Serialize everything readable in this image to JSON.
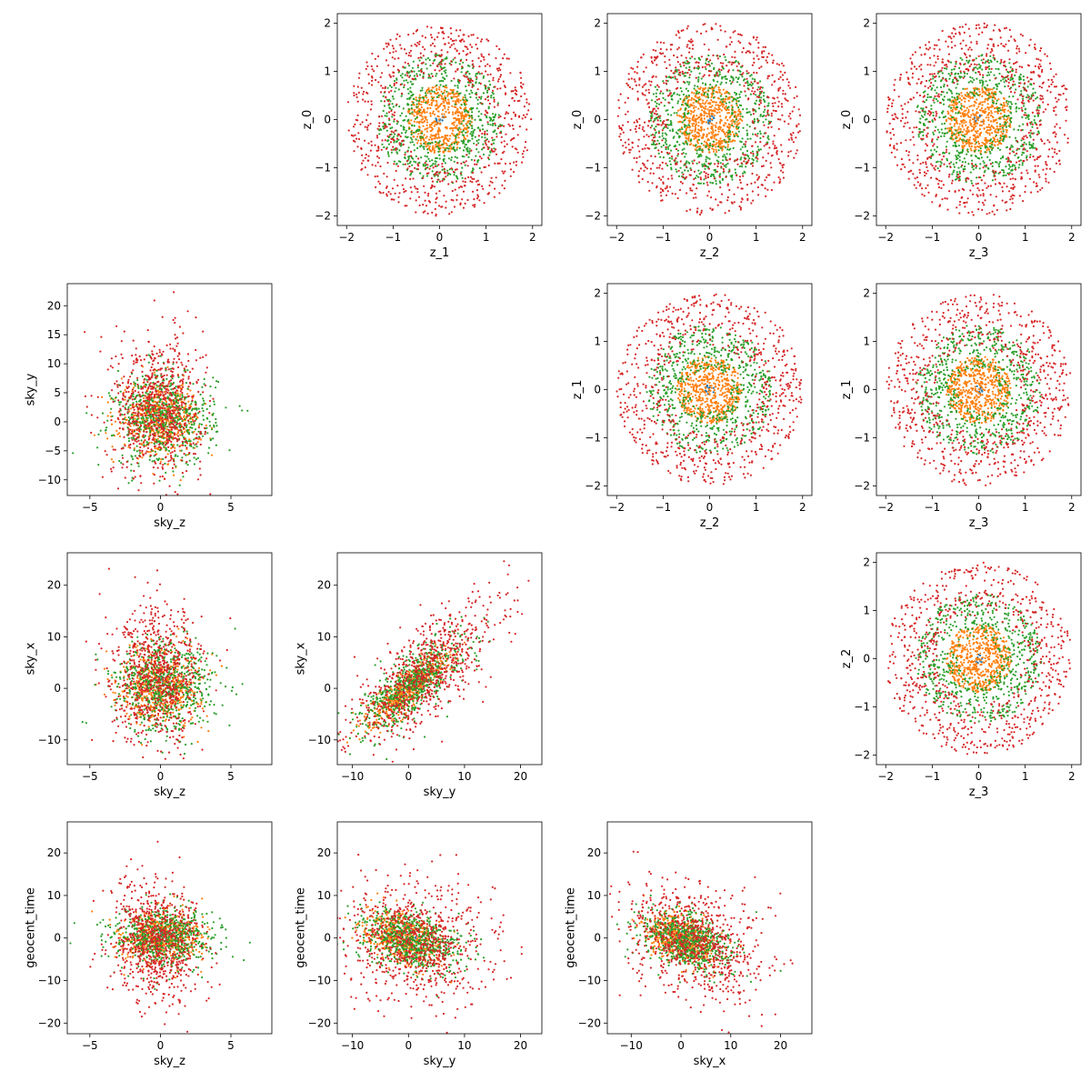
{
  "figure": {
    "layout": "4x4 scatter grid, some cells empty"
  },
  "colors": {
    "series": [
      "#1f77b4",
      "#ff7f0e",
      "#2ca02c",
      "#d62728"
    ]
  },
  "chart_data": [
    {
      "type": "scatter",
      "row": 0,
      "col": 1,
      "xlabel": "z_1",
      "ylabel": "z_0",
      "xlim": [
        -2.2,
        2.2
      ],
      "ylim": [
        -2.2,
        2.2
      ],
      "xticks": [
        -2,
        -1,
        0,
        1,
        2
      ],
      "yticks": [
        -2,
        -1,
        0,
        1,
        2
      ],
      "series": [
        {
          "color": "#1f77b4",
          "dist": "disk",
          "cx": 0,
          "cy": 0,
          "r": 0.1,
          "n": 12
        },
        {
          "color": "#ff7f0e",
          "dist": "disk",
          "cx": 0,
          "cy": 0,
          "r": 0.7,
          "n": 550
        },
        {
          "color": "#2ca02c",
          "dist": "ring",
          "cx": 0,
          "cy": 0,
          "r_in": 0.45,
          "r_out": 1.35,
          "n": 650
        },
        {
          "color": "#d62728",
          "dist": "ring",
          "cx": 0,
          "cy": 0,
          "r_in": 0.9,
          "r_out": 2.0,
          "n": 750
        }
      ]
    },
    {
      "type": "scatter",
      "row": 0,
      "col": 2,
      "xlabel": "z_2",
      "ylabel": "z_0",
      "xlim": [
        -2.2,
        2.2
      ],
      "ylim": [
        -2.2,
        2.2
      ],
      "xticks": [
        -2,
        -1,
        0,
        1,
        2
      ],
      "yticks": [
        -2,
        -1,
        0,
        1,
        2
      ],
      "series": [
        {
          "color": "#1f77b4",
          "dist": "disk",
          "cx": 0,
          "cy": 0,
          "r": 0.1,
          "n": 12
        },
        {
          "color": "#ff7f0e",
          "dist": "disk",
          "cx": 0,
          "cy": 0,
          "r": 0.7,
          "n": 550
        },
        {
          "color": "#2ca02c",
          "dist": "ring",
          "cx": 0,
          "cy": 0,
          "r_in": 0.45,
          "r_out": 1.35,
          "n": 650
        },
        {
          "color": "#d62728",
          "dist": "ring",
          "cx": 0,
          "cy": 0,
          "r_in": 0.9,
          "r_out": 2.0,
          "n": 750
        }
      ]
    },
    {
      "type": "scatter",
      "row": 0,
      "col": 3,
      "xlabel": "z_3",
      "ylabel": "z_0",
      "xlim": [
        -2.2,
        2.2
      ],
      "ylim": [
        -2.2,
        2.2
      ],
      "xticks": [
        -2,
        -1,
        0,
        1,
        2
      ],
      "yticks": [
        -2,
        -1,
        0,
        1,
        2
      ],
      "series": [
        {
          "color": "#1f77b4",
          "dist": "disk",
          "cx": 0,
          "cy": 0,
          "r": 0.1,
          "n": 12
        },
        {
          "color": "#ff7f0e",
          "dist": "disk",
          "cx": 0,
          "cy": 0,
          "r": 0.7,
          "n": 550
        },
        {
          "color": "#2ca02c",
          "dist": "ring",
          "cx": 0,
          "cy": 0,
          "r_in": 0.45,
          "r_out": 1.35,
          "n": 650
        },
        {
          "color": "#d62728",
          "dist": "ring",
          "cx": 0,
          "cy": 0,
          "r_in": 0.9,
          "r_out": 2.0,
          "n": 750
        }
      ]
    },
    {
      "type": "scatter",
      "row": 1,
      "col": 0,
      "xlabel": "sky_z",
      "ylabel": "sky_y",
      "xlim": [
        -6.6,
        7.9
      ],
      "ylim": [
        -12.7,
        23.8
      ],
      "xticks": [
        -5,
        0,
        5
      ],
      "yticks": [
        -10,
        -5,
        0,
        5,
        10,
        15,
        20
      ],
      "series": [
        {
          "color": "#1f77b4",
          "dist": "gauss",
          "mx": 0,
          "my": 0.5,
          "sx": 0.3,
          "sy": 1,
          "n": 12
        },
        {
          "color": "#ff7f0e",
          "dist": "gauss",
          "mx": 0,
          "my": 0.5,
          "sx": 1.4,
          "sy": 3,
          "n": 550
        },
        {
          "color": "#2ca02c",
          "dist": "gauss",
          "mx": 0.3,
          "my": 0.5,
          "sx": 1.8,
          "sy": 4,
          "n": 650
        },
        {
          "color": "#d62728",
          "dist": "gauss",
          "mx": -0.2,
          "my": 2.5,
          "sx": 1.6,
          "sy": 6,
          "n": 750
        }
      ]
    },
    {
      "type": "scatter",
      "row": 1,
      "col": 2,
      "xlabel": "z_2",
      "ylabel": "z_1",
      "xlim": [
        -2.2,
        2.2
      ],
      "ylim": [
        -2.2,
        2.2
      ],
      "xticks": [
        -2,
        -1,
        0,
        1,
        2
      ],
      "yticks": [
        -2,
        -1,
        0,
        1,
        2
      ],
      "series": [
        {
          "color": "#1f77b4",
          "dist": "disk",
          "cx": 0,
          "cy": 0,
          "r": 0.1,
          "n": 12
        },
        {
          "color": "#ff7f0e",
          "dist": "disk",
          "cx": 0,
          "cy": 0,
          "r": 0.7,
          "n": 550
        },
        {
          "color": "#2ca02c",
          "dist": "ring",
          "cx": 0,
          "cy": 0,
          "r_in": 0.45,
          "r_out": 1.35,
          "n": 650
        },
        {
          "color": "#d62728",
          "dist": "ring",
          "cx": 0,
          "cy": 0,
          "r_in": 0.9,
          "r_out": 2.0,
          "n": 750
        }
      ]
    },
    {
      "type": "scatter",
      "row": 1,
      "col": 3,
      "xlabel": "z_3",
      "ylabel": "z_1",
      "xlim": [
        -2.2,
        2.2
      ],
      "ylim": [
        -2.2,
        2.2
      ],
      "xticks": [
        -2,
        -1,
        0,
        1,
        2
      ],
      "yticks": [
        -2,
        -1,
        0,
        1,
        2
      ],
      "series": [
        {
          "color": "#1f77b4",
          "dist": "disk",
          "cx": 0,
          "cy": 0,
          "r": 0.1,
          "n": 12
        },
        {
          "color": "#ff7f0e",
          "dist": "disk",
          "cx": 0,
          "cy": 0,
          "r": 0.7,
          "n": 550
        },
        {
          "color": "#2ca02c",
          "dist": "ring",
          "cx": 0,
          "cy": 0,
          "r_in": 0.45,
          "r_out": 1.35,
          "n": 650
        },
        {
          "color": "#d62728",
          "dist": "ring",
          "cx": 0,
          "cy": 0,
          "r_in": 0.9,
          "r_out": 2.0,
          "n": 750
        }
      ]
    },
    {
      "type": "scatter",
      "row": 2,
      "col": 0,
      "xlabel": "sky_z",
      "ylabel": "sky_x",
      "xlim": [
        -6.6,
        7.9
      ],
      "ylim": [
        -14.8,
        26.3
      ],
      "xticks": [
        -5,
        0,
        5
      ],
      "yticks": [
        -10,
        0,
        10,
        20
      ],
      "series": [
        {
          "color": "#1f77b4",
          "dist": "gauss",
          "mx": 0,
          "my": 0.5,
          "sx": 0.3,
          "sy": 1,
          "n": 12
        },
        {
          "color": "#ff7f0e",
          "dist": "gauss",
          "mx": 0,
          "my": 0.5,
          "sx": 1.4,
          "sy": 3.5,
          "n": 550
        },
        {
          "color": "#2ca02c",
          "dist": "gauss",
          "mx": 0.3,
          "my": 0.5,
          "sx": 1.8,
          "sy": 4.5,
          "n": 650
        },
        {
          "color": "#d62728",
          "dist": "gauss",
          "mx": -0.2,
          "my": 2.5,
          "sx": 1.6,
          "sy": 6.5,
          "n": 750
        }
      ]
    },
    {
      "type": "scatter",
      "row": 2,
      "col": 1,
      "xlabel": "sky_y",
      "ylabel": "sky_x",
      "xlim": [
        -12.7,
        23.8
      ],
      "ylim": [
        -14.8,
        26.3
      ],
      "xticks": [
        -10,
        0,
        10,
        20
      ],
      "yticks": [
        -10,
        0,
        10,
        20
      ],
      "series": [
        {
          "color": "#1f77b4",
          "dist": "corr",
          "mx": 0.5,
          "my": 0.5,
          "sx": 1,
          "sy": 1,
          "rho": 0.9,
          "n": 12
        },
        {
          "color": "#ff7f0e",
          "dist": "corr",
          "mx": 0,
          "my": 0,
          "sx": 3.5,
          "sy": 3.5,
          "rho": 0.85,
          "n": 550
        },
        {
          "color": "#2ca02c",
          "dist": "corr",
          "mx": 1,
          "my": 1,
          "sx": 4.5,
          "sy": 4.5,
          "rho": 0.75,
          "n": 650
        },
        {
          "color": "#d62728",
          "dist": "corr",
          "mx": 3,
          "my": 3,
          "sx": 6.5,
          "sy": 7,
          "rho": 0.75,
          "n": 750
        }
      ]
    },
    {
      "type": "scatter",
      "row": 2,
      "col": 3,
      "xlabel": "z_3",
      "ylabel": "z_2",
      "xlim": [
        -2.2,
        2.2
      ],
      "ylim": [
        -2.2,
        2.2
      ],
      "xticks": [
        -2,
        -1,
        0,
        1,
        2
      ],
      "yticks": [
        -2,
        -1,
        0,
        1,
        2
      ],
      "series": [
        {
          "color": "#1f77b4",
          "dist": "disk",
          "cx": 0,
          "cy": 0,
          "r": 0.1,
          "n": 12
        },
        {
          "color": "#ff7f0e",
          "dist": "disk",
          "cx": 0,
          "cy": 0,
          "r": 0.7,
          "n": 550
        },
        {
          "color": "#2ca02c",
          "dist": "ring",
          "cx": 0,
          "cy": 0,
          "r_in": 0.45,
          "r_out": 1.35,
          "n": 650
        },
        {
          "color": "#d62728",
          "dist": "ring",
          "cx": 0,
          "cy": 0,
          "r_in": 0.9,
          "r_out": 2.0,
          "n": 750
        }
      ]
    },
    {
      "type": "scatter",
      "row": 3,
      "col": 0,
      "xlabel": "sky_z",
      "ylabel": "geocent_time",
      "xlim": [
        -6.6,
        7.9
      ],
      "ylim": [
        -22.5,
        27.3
      ],
      "xticks": [
        -5,
        0,
        5
      ],
      "yticks": [
        -20,
        -10,
        0,
        10,
        20
      ],
      "series": [
        {
          "color": "#1f77b4",
          "dist": "gauss",
          "mx": 0,
          "my": 0,
          "sx": 0.3,
          "sy": 1,
          "n": 12
        },
        {
          "color": "#ff7f0e",
          "dist": "gauss",
          "mx": 0,
          "my": 0,
          "sx": 1.4,
          "sy": 3,
          "n": 550
        },
        {
          "color": "#2ca02c",
          "dist": "gauss",
          "mx": 0.3,
          "my": 0,
          "sx": 1.8,
          "sy": 3.5,
          "n": 650
        },
        {
          "color": "#d62728",
          "dist": "gauss",
          "mx": -0.2,
          "my": -1,
          "sx": 1.6,
          "sy": 7,
          "n": 750
        }
      ]
    },
    {
      "type": "scatter",
      "row": 3,
      "col": 1,
      "xlabel": "sky_y",
      "ylabel": "geocent_time",
      "xlim": [
        -12.7,
        23.8
      ],
      "ylim": [
        -22.5,
        27.3
      ],
      "xticks": [
        -10,
        0,
        10,
        20
      ],
      "yticks": [
        -20,
        -10,
        0,
        10,
        20
      ],
      "series": [
        {
          "color": "#1f77b4",
          "dist": "corr",
          "mx": 0,
          "my": 0,
          "sx": 1,
          "sy": 1,
          "rho": -0.3,
          "n": 12
        },
        {
          "color": "#ff7f0e",
          "dist": "corr",
          "mx": -1,
          "my": 0,
          "sx": 3.5,
          "sy": 3,
          "rho": -0.4,
          "n": 550
        },
        {
          "color": "#2ca02c",
          "dist": "corr",
          "mx": 0.5,
          "my": -0.5,
          "sx": 4.5,
          "sy": 3.5,
          "rho": -0.3,
          "n": 650
        },
        {
          "color": "#d62728",
          "dist": "corr",
          "mx": 2,
          "my": -1,
          "sx": 6.5,
          "sy": 7,
          "rho": -0.1,
          "n": 750
        }
      ]
    },
    {
      "type": "scatter",
      "row": 3,
      "col": 2,
      "xlabel": "sky_x",
      "ylabel": "geocent_time",
      "xlim": [
        -14.8,
        26.3
      ],
      "ylim": [
        -22.5,
        27.3
      ],
      "xticks": [
        -10,
        0,
        10,
        20
      ],
      "yticks": [
        -20,
        -10,
        0,
        10,
        20
      ],
      "series": [
        {
          "color": "#1f77b4",
          "dist": "corr",
          "mx": 0,
          "my": 0,
          "sx": 1,
          "sy": 1,
          "rho": -0.3,
          "n": 12
        },
        {
          "color": "#ff7f0e",
          "dist": "corr",
          "mx": 0,
          "my": 0,
          "sx": 3.5,
          "sy": 3,
          "rho": -0.4,
          "n": 550
        },
        {
          "color": "#2ca02c",
          "dist": "corr",
          "mx": 1,
          "my": -0.5,
          "sx": 4.5,
          "sy": 3.5,
          "rho": -0.35,
          "n": 650
        },
        {
          "color": "#d62728",
          "dist": "corr",
          "mx": 2.5,
          "my": -1,
          "sx": 7,
          "sy": 7,
          "rho": -0.3,
          "n": 750
        }
      ]
    }
  ]
}
